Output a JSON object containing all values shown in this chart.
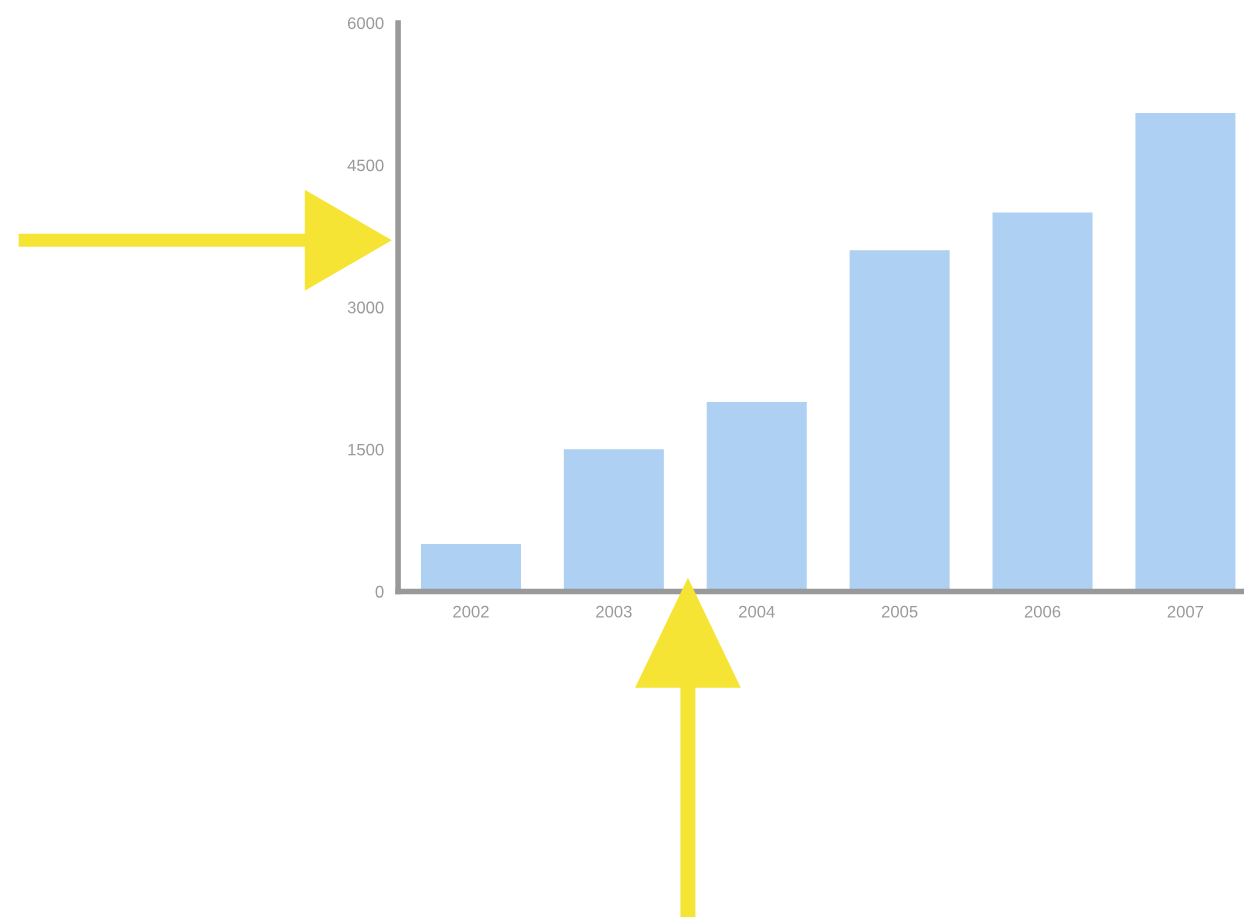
{
  "chart_data": {
    "type": "bar",
    "categories": [
      "2002",
      "2003",
      "2004",
      "2005",
      "2006",
      "2007"
    ],
    "values": [
      500,
      1500,
      2000,
      3600,
      4000,
      5050
    ],
    "color": "#aed0f2",
    "ylim": [
      0,
      6000
    ],
    "yticks": [
      0,
      1500,
      3000,
      4500,
      6000
    ],
    "grid": false
  }
}
